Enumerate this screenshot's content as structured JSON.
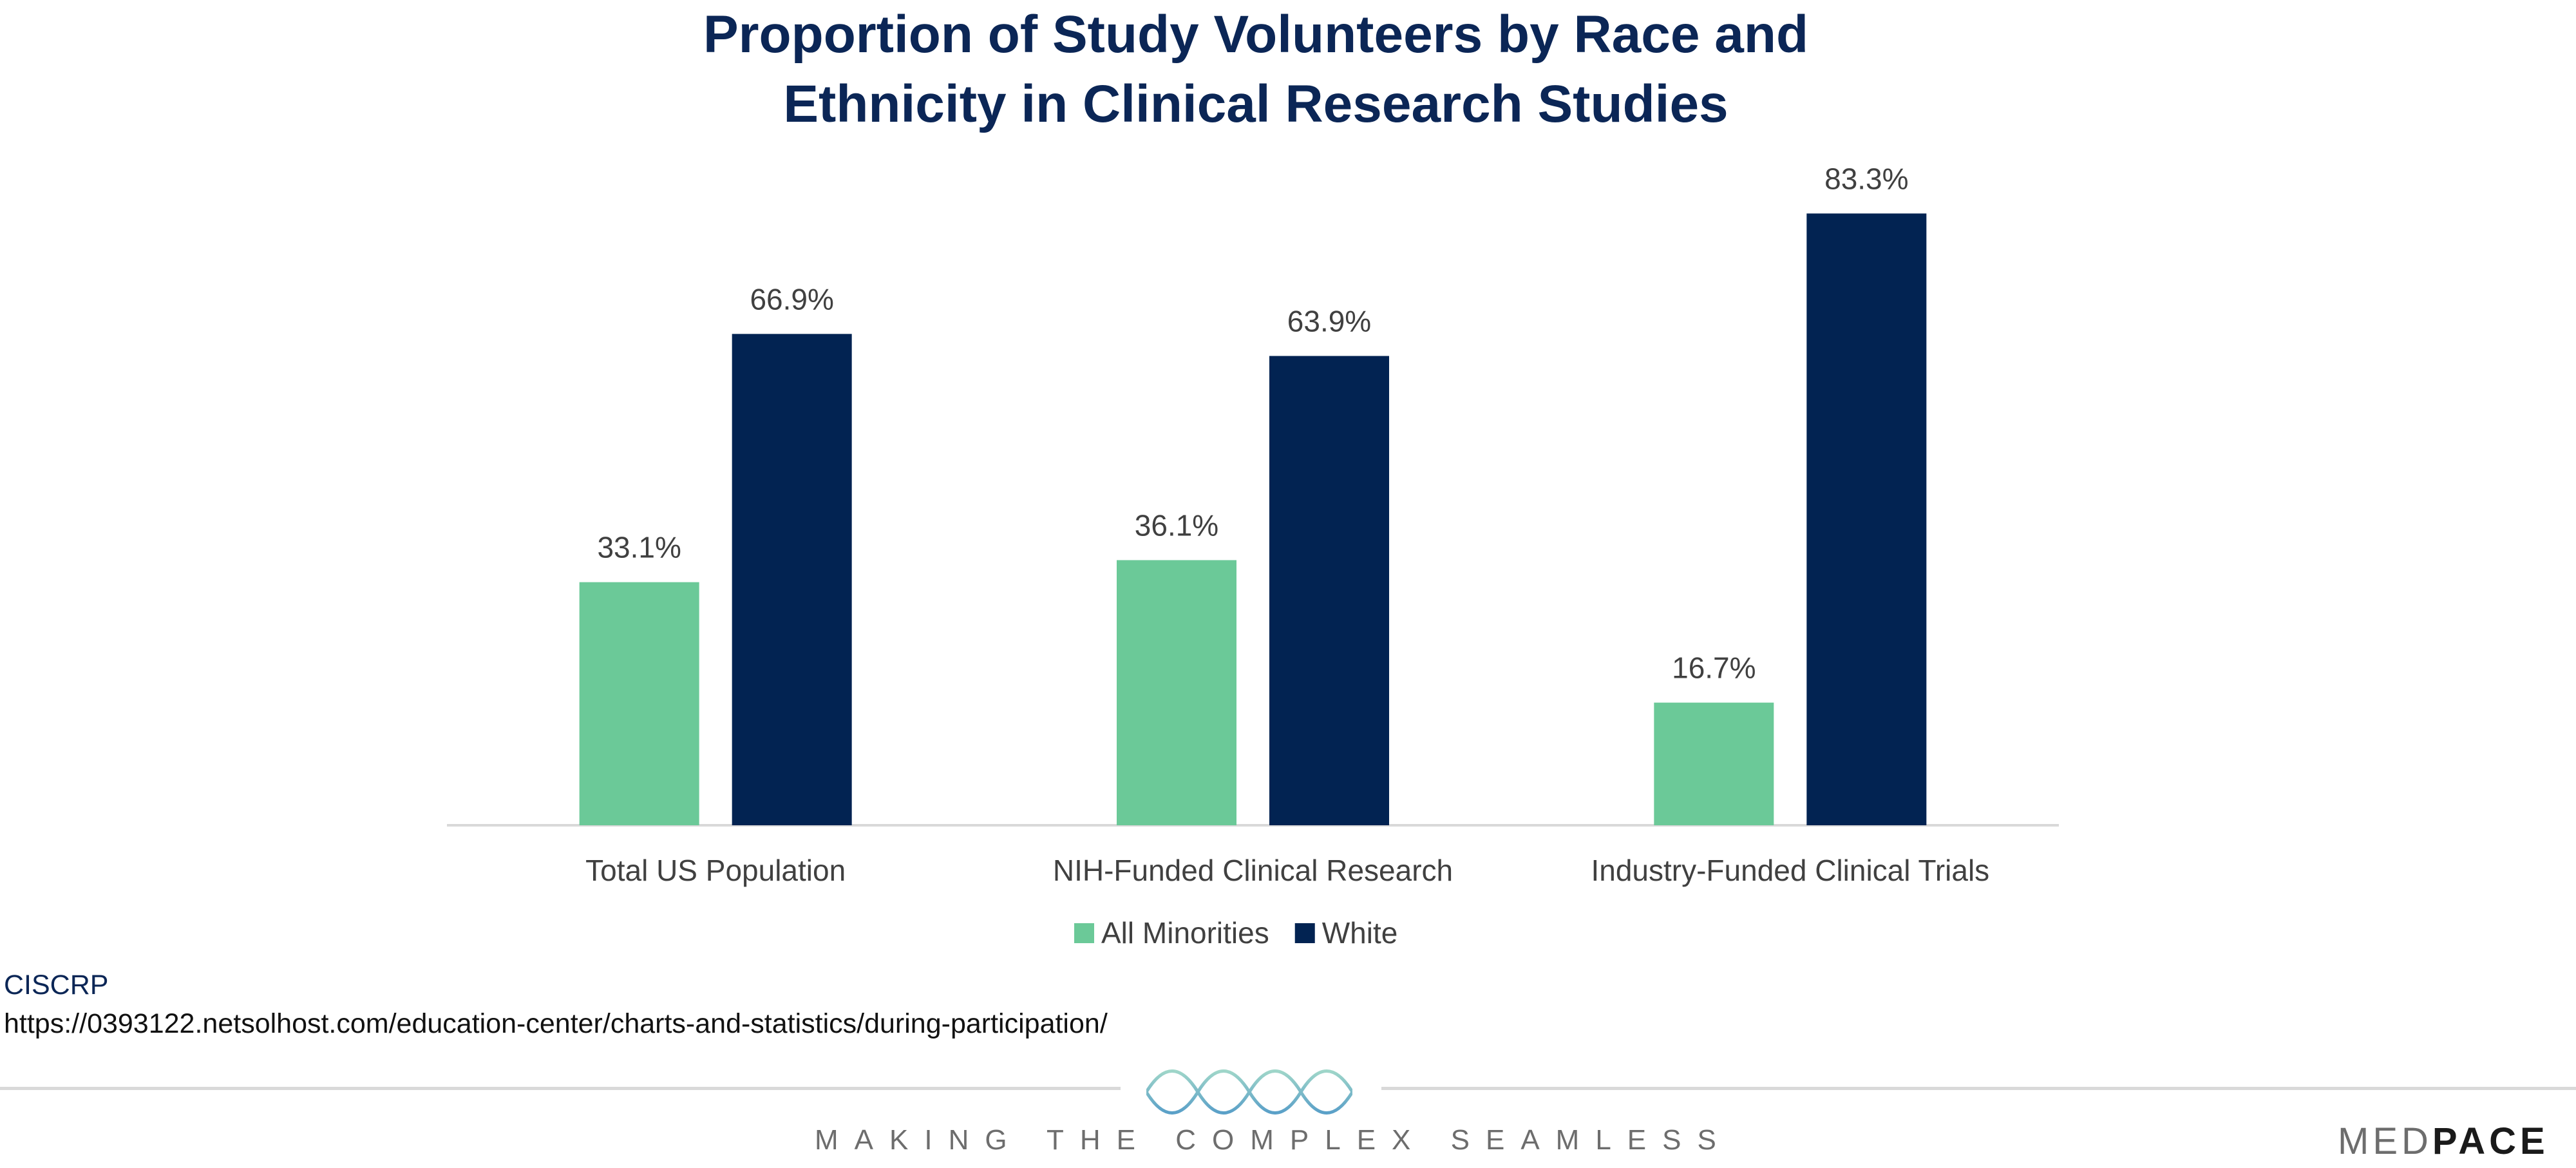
{
  "chart_data": {
    "type": "bar",
    "title": "Proportion of Study Volunteers by Race and Ethnicity in Clinical Research Studies",
    "title_lines": [
      "Proportion of Study Volunteers by Race and",
      "Ethnicity in Clinical Research Studies"
    ],
    "categories": [
      "Total US Population",
      "NIH-Funded Clinical Research",
      "Industry-Funded Clinical Trials"
    ],
    "series": [
      {
        "name": "All Minorities",
        "values": [
          33.1,
          36.1,
          16.7
        ],
        "labels": [
          "33.1%",
          "36.1%",
          "16.7%"
        ],
        "color": "#6BC998"
      },
      {
        "name": "White",
        "values": [
          66.9,
          63.9,
          83.3
        ],
        "labels": [
          "66.9%",
          "63.9%",
          "83.3%"
        ],
        "color": "#022352"
      }
    ],
    "xlabel": "",
    "ylabel": "",
    "ylim": [
      0,
      100
    ],
    "grid": false,
    "legend": "bottom"
  },
  "source": {
    "name": "CISCRP",
    "url": "https://0393122.netsolhost.com/education-center/charts-and-statistics/during-participation/"
  },
  "footer": {
    "tagline": "MAKING THE COMPLEX SEAMLESS",
    "logo": "MEDPACE",
    "logo_parts": [
      "MED",
      "PACE"
    ],
    "icon": "dna-helix-icon"
  }
}
